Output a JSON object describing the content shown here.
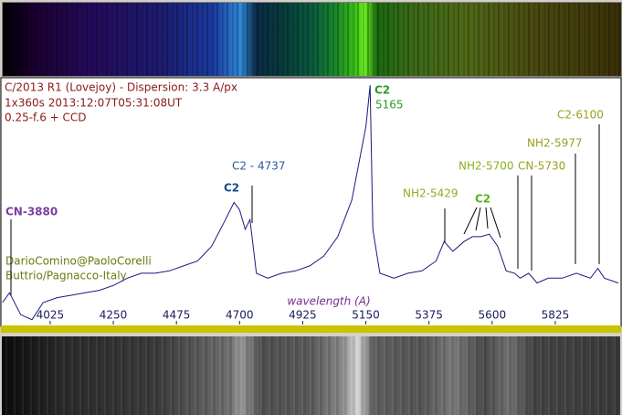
{
  "chart_data": {
    "type": "line",
    "info": [
      "C/2013 R1 (Lovejoy) - Dispersion: 3.3 A/px",
      "1x360s   2013:12:07T05:31:08UT",
      "0.25-f.6 + CCD"
    ],
    "credit": [
      "DarioComino@PaoloCorelli",
      "Buttrio/Pagnacco-Italy"
    ],
    "x_label": "wavelength (A)",
    "annotations": [
      "CN-3880",
      "C2 - 4737",
      "C2",
      "C2",
      "5165",
      "NH2-5429",
      "NH2-5700",
      "C2",
      "CN-5730",
      "NH2-5977",
      "C2-6100"
    ],
    "x": [
      3855,
      3880,
      3920,
      3960,
      4000,
      4050,
      4100,
      4150,
      4200,
      4250,
      4300,
      4350,
      4400,
      4450,
      4500,
      4550,
      4600,
      4650,
      4680,
      4700,
      4720,
      4737,
      4760,
      4800,
      4850,
      4900,
      4950,
      5000,
      5050,
      5100,
      5130,
      5150,
      5160,
      5165,
      5175,
      5200,
      5250,
      5300,
      5350,
      5400,
      5429,
      5460,
      5500,
      5530,
      5560,
      5590,
      5620,
      5650,
      5680,
      5700,
      5730,
      5760,
      5800,
      5850,
      5900,
      5950,
      5977,
      6000,
      6050
    ],
    "values": [
      9,
      13,
      4,
      2,
      9,
      11,
      12,
      13,
      14,
      16,
      19,
      21,
      21,
      22,
      24,
      26,
      32,
      43,
      50,
      47,
      39,
      43,
      21,
      19,
      21,
      22,
      24,
      28,
      36,
      51,
      69,
      81,
      92,
      98,
      39,
      21,
      19,
      21,
      22,
      26,
      34,
      30,
      34,
      36,
      36,
      37,
      32,
      22,
      21,
      19,
      21,
      17,
      19,
      19,
      21,
      19,
      23,
      19,
      17
    ],
    "color": "#1a1a80",
    "xlim": [
      3856,
      6053
    ],
    "ylim": [
      0,
      100
    ],
    "xticks": [
      4025,
      4250,
      4475,
      4700,
      4925,
      5150,
      5375,
      5600,
      5825
    ]
  }
}
